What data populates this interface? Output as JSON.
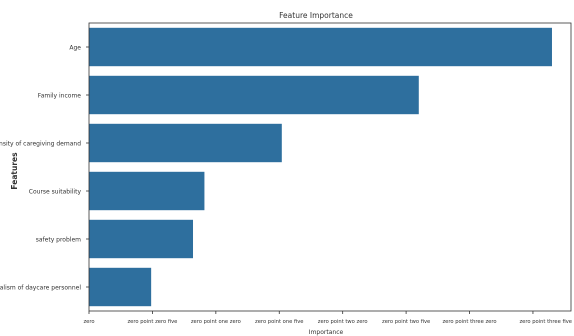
{
  "chart_data": {
    "type": "bar",
    "orientation": "horizontal",
    "title": "Feature Importance",
    "xlabel": "Importance",
    "ylabel": "Features",
    "categories": [
      "Age",
      "Family income",
      "Intensity of caregiving demand",
      "Course suitability",
      "safety problem",
      "Professionalism of daycare personnel"
    ],
    "values": [
      0.365,
      0.26,
      0.152,
      0.091,
      0.082,
      0.049
    ],
    "xlim": [
      0,
      0.38
    ],
    "xticks": [
      0,
      0.05,
      0.1,
      0.15,
      0.2,
      0.25,
      0.3,
      0.35
    ],
    "xtick_labels": [
      "zero",
      "zero point zero five",
      "zero point one zero",
      "zero point one five",
      "zero point two zero",
      "zero point two five",
      "zero point three zero",
      "zero point three five"
    ],
    "bar_color": "#2e6f9e",
    "grid": false,
    "legend": "none"
  }
}
